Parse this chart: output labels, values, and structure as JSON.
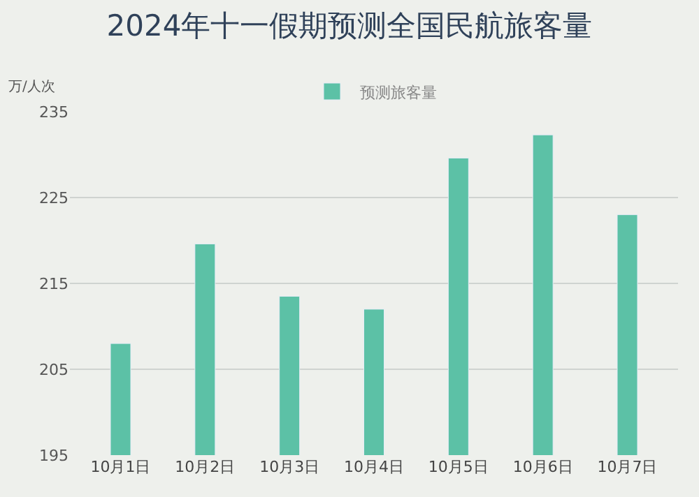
{
  "chart_data": {
    "type": "bar",
    "title": "2024年十一假期预测全国民航旅客量",
    "ylabel": "万/人次",
    "categories": [
      "10月1日",
      "10月2日",
      "10月3日",
      "10月4日",
      "10月5日",
      "10月6日",
      "10月7日"
    ],
    "series": [
      {
        "name": "预测旅客量",
        "color": "#5cc1a6",
        "values": [
          208.0,
          219.6,
          213.5,
          212.0,
          229.6,
          232.3,
          223.0
        ]
      }
    ],
    "ylim": [
      195,
      235
    ],
    "yticks": [
      195,
      205,
      215,
      225,
      235
    ],
    "grid": "y",
    "legend": "top"
  }
}
